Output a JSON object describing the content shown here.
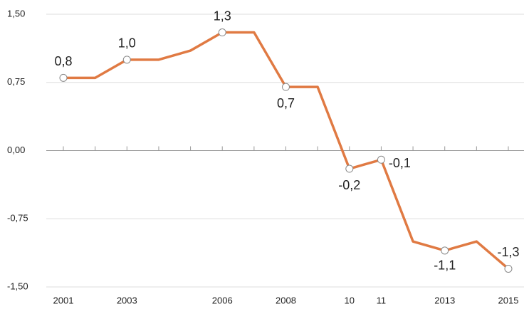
{
  "chart_data": {
    "type": "line",
    "categories": [
      "2001",
      null,
      "2003",
      null,
      null,
      "2006",
      null,
      "2008",
      null,
      "10",
      "11",
      null,
      "2013",
      null,
      "2015"
    ],
    "series": [
      {
        "color": "#e07a43",
        "values": [
          0.8,
          0.8,
          1.0,
          1.0,
          1.1,
          1.3,
          1.3,
          0.7,
          0.7,
          -0.2,
          -0.1,
          -1.0,
          -1.1,
          -1.0,
          -1.3
        ],
        "value_labels": [
          "0,8",
          null,
          "1,0",
          null,
          null,
          "1,3",
          null,
          "0,7",
          null,
          "-0,2",
          "-0,1",
          null,
          "-1,1",
          null,
          "-1,3"
        ]
      }
    ],
    "ylim": [
      -1.5,
      1.5
    ],
    "yticks": [
      {
        "value": 1.5,
        "label": "1,50"
      },
      {
        "value": 0.75,
        "label": "0,75"
      },
      {
        "value": 0,
        "label": "0,00"
      },
      {
        "value": -0.75,
        "label": "-0,75"
      },
      {
        "value": -1.5,
        "label": "-1,50"
      }
    ],
    "grid": true
  }
}
